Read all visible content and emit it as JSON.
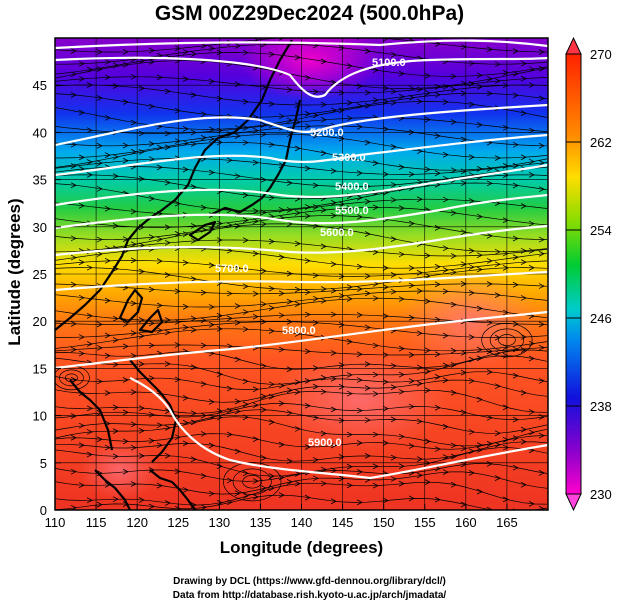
{
  "title": "GSM 00Z29Dec2024 (500.0hPa)",
  "xaxis": {
    "label": "Longitude (degrees)",
    "ticks": [
      110,
      115,
      120,
      125,
      130,
      135,
      140,
      145,
      150,
      155,
      160,
      165
    ],
    "range": [
      110,
      170
    ]
  },
  "yaxis": {
    "label": "Latitude  (degrees)",
    "ticks": [
      0,
      5,
      10,
      15,
      20,
      25,
      30,
      35,
      40,
      45
    ],
    "range": [
      0,
      50
    ]
  },
  "colorbar": {
    "ticks": [
      230,
      238,
      246,
      254,
      262,
      270
    ],
    "range": [
      230,
      270
    ]
  },
  "contour_labels": [
    "5100.0",
    "5200.0",
    "5300.0",
    "5400.0",
    "5500.0",
    "5600.0",
    "5700.0",
    "5800.0",
    "5900.0"
  ],
  "credits": [
    "Drawing by DCL (https://www.gfd-dennou.org/library/dcl/)",
    "Data from http://database.rish.kyoto-u.ac.jp/arch/jmadata/"
  ],
  "colors": {
    "cold": "#cc00cc",
    "mid": "#00cc33",
    "warm": "#ff2200"
  }
}
